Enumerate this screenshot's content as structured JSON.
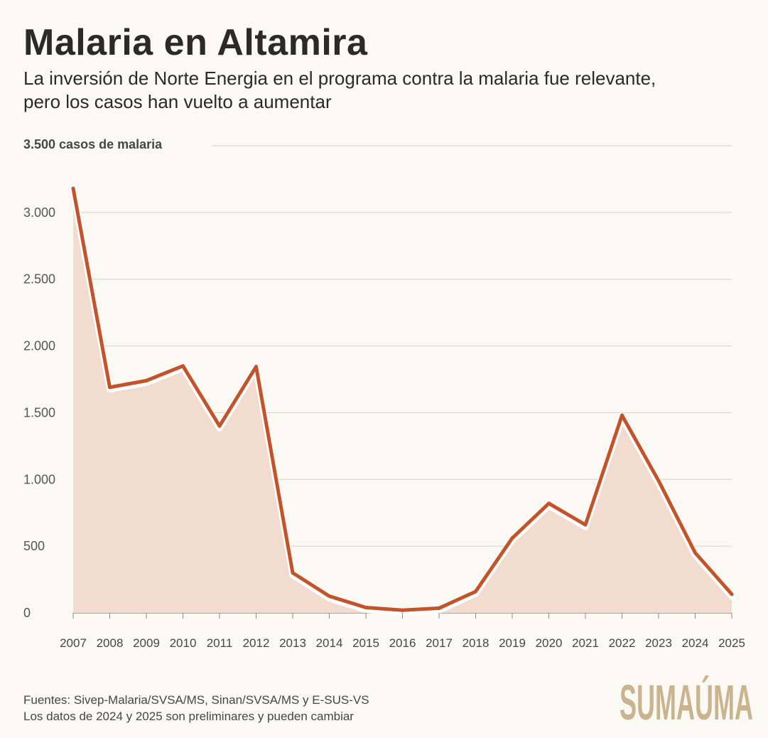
{
  "title": "Malaria en Altamira",
  "subtitle": "La inversión de Norte Energia en el programa contra la malaria fue relevante, pero los casos han vuelto a aumentar",
  "sources": {
    "line1": "Fuentes: Sivep-Malaria/SVSA/MS, Sinan/SVSA/MS y E-SUS-VS",
    "line2": "Los datos de 2024 y 2025 son preliminares y pueden cambiar"
  },
  "logo": {
    "text": "sumaúma",
    "color": "#c9b48f"
  },
  "colors": {
    "line": "#c4532a",
    "area": "#f2dccf",
    "grid": "#d6d3cb",
    "background": "#fbf9f3"
  },
  "chart_data": {
    "type": "area",
    "x": [
      "2007",
      "2008",
      "2009",
      "2010",
      "2011",
      "2012",
      "2013",
      "2014",
      "2015",
      "2016",
      "2017",
      "2018",
      "2019",
      "2020",
      "2021",
      "2022",
      "2023",
      "2024",
      "2025"
    ],
    "values": [
      3180,
      1690,
      1740,
      1850,
      1400,
      1845,
      300,
      125,
      40,
      20,
      35,
      160,
      560,
      820,
      660,
      1480,
      990,
      450,
      140
    ],
    "ylim": [
      0,
      3500
    ],
    "yticks": [
      0,
      500,
      1000,
      1500,
      2000,
      2500,
      3000
    ],
    "ytick_labels": [
      "0",
      "500",
      "1.000",
      "1.500",
      "2.000",
      "2.500",
      "3.000"
    ],
    "top_label": "3.500 casos de malaria",
    "grid": true
  }
}
